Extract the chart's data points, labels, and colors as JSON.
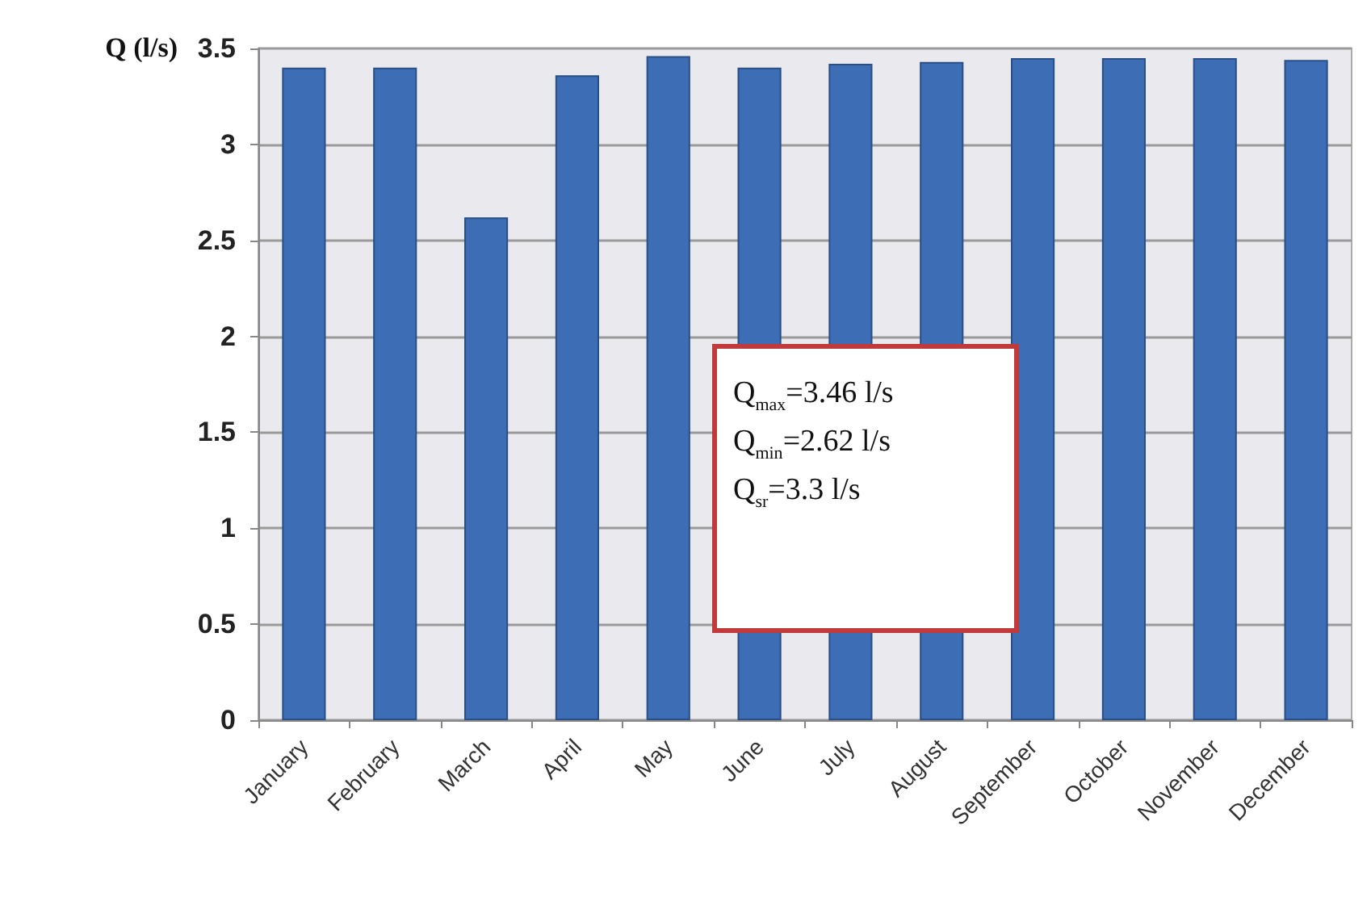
{
  "chart_data": {
    "type": "bar",
    "ylabel": "Q (l/s)",
    "categories": [
      "January",
      "February",
      "March",
      "April",
      "May",
      "June",
      "July",
      "August",
      "September",
      "October",
      "November",
      "December"
    ],
    "values": [
      3.4,
      3.4,
      2.62,
      3.36,
      3.46,
      3.4,
      3.42,
      3.43,
      3.45,
      3.45,
      3.45,
      3.44
    ],
    "color": "#3d6db5",
    "ylim": [
      0,
      3.5
    ],
    "yticks": [
      0,
      0.5,
      1,
      1.5,
      2,
      2.5,
      3,
      3.5
    ],
    "grid": "y",
    "annotations": [
      "Q$_{max}$=3.46 l/s",
      "Q$_{min}$=2.62 l/s",
      "Q$_{sr}$=3.3 l/s"
    ]
  }
}
